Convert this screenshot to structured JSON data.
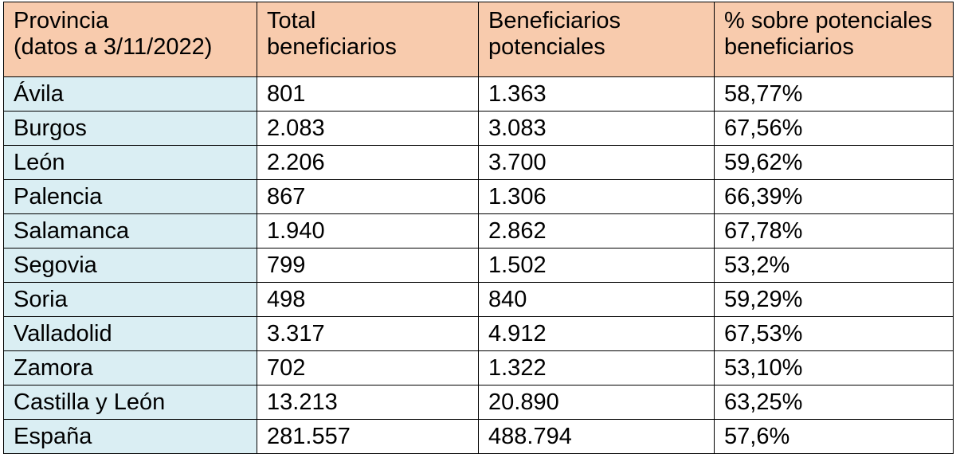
{
  "colors": {
    "header_bg": "#f8cbad",
    "first_column_bg": "#daeef3",
    "cell_bg": "#ffffff",
    "border": "#000000"
  },
  "headers": [
    {
      "line1": "Provincia",
      "line2": "(datos a 3/11/2022)"
    },
    {
      "line1": "Total",
      "line2": "beneficiarios"
    },
    {
      "line1": "Beneficiarios",
      "line2": "potenciales"
    },
    {
      "line1": "% sobre potenciales",
      "line2": "beneficiarios"
    }
  ],
  "rows": [
    {
      "provincia": "Ávila",
      "total": "801",
      "potenciales": "1.363",
      "porcentaje": "58,77%"
    },
    {
      "provincia": "Burgos",
      "total": "2.083",
      "potenciales": "3.083",
      "porcentaje": "67,56%"
    },
    {
      "provincia": "León",
      "total": "2.206",
      "potenciales": "3.700",
      "porcentaje": "59,62%"
    },
    {
      "provincia": "Palencia",
      "total": "867",
      "potenciales": "1.306",
      "porcentaje": "66,39%"
    },
    {
      "provincia": "Salamanca",
      "total": "1.940",
      "potenciales": "2.862",
      "porcentaje": "67,78%"
    },
    {
      "provincia": "Segovia",
      "total": "799",
      "potenciales": "1.502",
      "porcentaje": "53,2%"
    },
    {
      "provincia": "Soria",
      "total": "498",
      "potenciales": "840",
      "porcentaje": "59,29%"
    },
    {
      "provincia": "Valladolid",
      "total": "3.317",
      "potenciales": "4.912",
      "porcentaje": "67,53%"
    },
    {
      "provincia": "Zamora",
      "total": "702",
      "potenciales": "1.322",
      "porcentaje": "53,10%"
    },
    {
      "provincia": "Castilla y León",
      "total": "13.213",
      "potenciales": "20.890",
      "porcentaje": "63,25%"
    },
    {
      "provincia": "España",
      "total": "281.557",
      "potenciales": "488.794",
      "porcentaje": "57,6%"
    }
  ]
}
